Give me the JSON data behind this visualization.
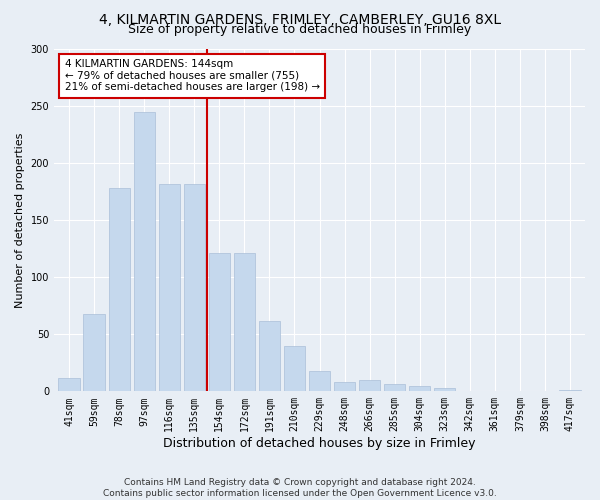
{
  "title1": "4, KILMARTIN GARDENS, FRIMLEY, CAMBERLEY, GU16 8XL",
  "title2": "Size of property relative to detached houses in Frimley",
  "xlabel": "Distribution of detached houses by size in Frimley",
  "ylabel": "Number of detached properties",
  "categories": [
    "41sqm",
    "59sqm",
    "78sqm",
    "97sqm",
    "116sqm",
    "135sqm",
    "154sqm",
    "172sqm",
    "191sqm",
    "210sqm",
    "229sqm",
    "248sqm",
    "266sqm",
    "285sqm",
    "304sqm",
    "323sqm",
    "342sqm",
    "361sqm",
    "379sqm",
    "398sqm",
    "417sqm"
  ],
  "values": [
    12,
    68,
    178,
    245,
    182,
    182,
    121,
    121,
    62,
    40,
    18,
    8,
    10,
    6,
    5,
    3,
    0,
    0,
    0,
    0,
    1
  ],
  "bar_color": "#c5d8ed",
  "bar_edge_color": "#aabfd8",
  "vline_color": "#cc0000",
  "annotation_text": "4 KILMARTIN GARDENS: 144sqm\n← 79% of detached houses are smaller (755)\n21% of semi-detached houses are larger (198) →",
  "annotation_box_color": "#ffffff",
  "annotation_box_edge": "#cc0000",
  "background_color": "#e8eef5",
  "footnote": "Contains HM Land Registry data © Crown copyright and database right 2024.\nContains public sector information licensed under the Open Government Licence v3.0.",
  "ylim": [
    0,
    300
  ],
  "title1_fontsize": 10,
  "title2_fontsize": 9,
  "xlabel_fontsize": 9,
  "ylabel_fontsize": 8,
  "tick_fontsize": 7,
  "footnote_fontsize": 6.5
}
